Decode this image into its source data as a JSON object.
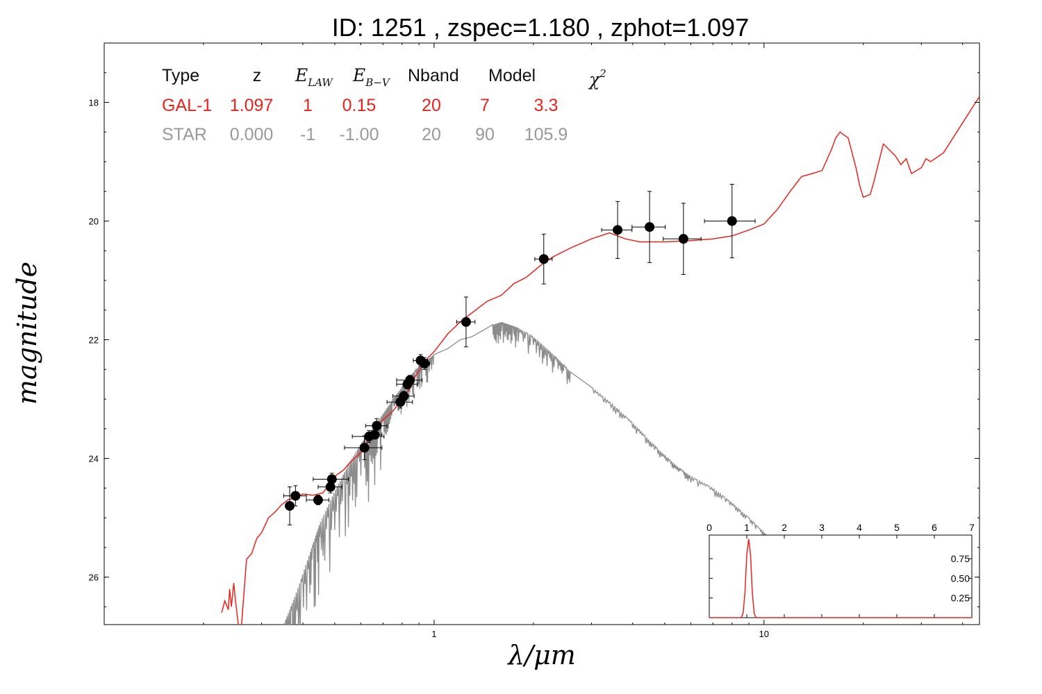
{
  "chart_data": {
    "type": "scatter",
    "title": "ID:  1251  , zspec=1.180 , zphot=1.097",
    "xlabel": "λ/μm",
    "ylabel": "magnitude",
    "xscale": "log",
    "xlim": [
      0.1,
      45
    ],
    "ylim": [
      26.8,
      17.0
    ],
    "x_ticks": [
      {
        "value": 1,
        "label": "1"
      },
      {
        "value": 10,
        "label": "10"
      }
    ],
    "y_ticks": [
      {
        "value": 18,
        "label": "18"
      },
      {
        "value": 20,
        "label": "20"
      },
      {
        "value": 22,
        "label": "22"
      },
      {
        "value": 24,
        "label": "24"
      },
      {
        "value": 26,
        "label": "26"
      }
    ],
    "legend_table": {
      "headers": [
        "Type",
        "z",
        "E_LAW",
        "E_B-V",
        "Nband",
        "Model",
        "χ2"
      ],
      "rows": [
        {
          "name": "GAL-1",
          "color": "#e8231c",
          "cells": [
            "GAL-1",
            "1.097",
            "1",
            "0.15",
            "20",
            "7",
            "3.3"
          ]
        },
        {
          "name": "STAR",
          "color": "#999999",
          "cells": [
            "STAR",
            "0.000",
            "-1",
            "-1.00",
            "20",
            "90",
            "105.9"
          ]
        }
      ]
    },
    "photometry": [
      {
        "x": 0.365,
        "y": 24.8,
        "xerr": 0.009,
        "yerr": 0.32
      },
      {
        "x": 0.38,
        "y": 24.63,
        "xerr": 0.03,
        "yerr": 0.17
      },
      {
        "x": 0.445,
        "y": 24.7,
        "xerr": 0.035,
        "yerr": 0.08
      },
      {
        "x": 0.485,
        "y": 24.48,
        "xerr": 0.04,
        "yerr": 0.1
      },
      {
        "x": 0.49,
        "y": 24.35,
        "xerr": 0.06,
        "yerr": 0.1
      },
      {
        "x": 0.615,
        "y": 23.82,
        "xerr": 0.08,
        "yerr": 0.2
      },
      {
        "x": 0.635,
        "y": 23.63,
        "xerr": 0.07,
        "yerr": 0.1
      },
      {
        "x": 0.66,
        "y": 23.6,
        "xerr": 0.035,
        "yerr": 0.06
      },
      {
        "x": 0.67,
        "y": 23.45,
        "xerr": 0.05,
        "yerr": 0.12
      },
      {
        "x": 0.79,
        "y": 23.05,
        "xerr": 0.07,
        "yerr": 0.1
      },
      {
        "x": 0.81,
        "y": 22.95,
        "xerr": 0.06,
        "yerr": 0.08
      },
      {
        "x": 0.83,
        "y": 22.75,
        "xerr": 0.06,
        "yerr": 0.08
      },
      {
        "x": 0.845,
        "y": 22.68,
        "xerr": 0.075,
        "yerr": 0.08
      },
      {
        "x": 0.91,
        "y": 22.35,
        "xerr": 0.045,
        "yerr": 0.1
      },
      {
        "x": 0.935,
        "y": 22.4,
        "xerr": 0.035,
        "yerr": 0.1
      },
      {
        "x": 1.25,
        "y": 21.7,
        "xerr": 0.08,
        "yerr": 0.42
      },
      {
        "x": 2.15,
        "y": 20.64,
        "xerr": 0.13,
        "yerr": 0.42
      },
      {
        "x": 3.6,
        "y": 20.15,
        "xerr": 0.38,
        "yerr": 0.48
      },
      {
        "x": 4.5,
        "y": 20.1,
        "xerr": 0.52,
        "yerr": 0.6
      },
      {
        "x": 5.7,
        "y": 20.3,
        "xerr": 0.75,
        "yerr": 0.6
      },
      {
        "x": 8.0,
        "y": 20.0,
        "xerr": 1.4,
        "yerr": 0.62
      }
    ],
    "series": [
      {
        "color": "#e8231c",
        "x": [
          0.227,
          0.232,
          0.238,
          0.24,
          0.243,
          0.247,
          0.25,
          0.255,
          0.26,
          0.265,
          0.27,
          0.28,
          0.29,
          0.3,
          0.315,
          0.33,
          0.345,
          0.36,
          0.37,
          0.38,
          0.4,
          0.43,
          0.46,
          0.48,
          0.5,
          0.53,
          0.56,
          0.6,
          0.63,
          0.66,
          0.7,
          0.75,
          0.8,
          0.85,
          0.88,
          0.92,
          0.96,
          1.0,
          1.05,
          1.1,
          1.2,
          1.3,
          1.45,
          1.6,
          1.75,
          1.9,
          2.1,
          2.3,
          2.6,
          3.0,
          3.4,
          3.8,
          4.2,
          4.6,
          5.0,
          6.0,
          7.0,
          8.0,
          9.0,
          10.0,
          11.0,
          12.0,
          13.0,
          14.0,
          15.0,
          16.0,
          16.5,
          17.0,
          18.0,
          19.0,
          19.5,
          20.0,
          21.0,
          21.5,
          23.0,
          25.0,
          26.0,
          27.0,
          28.0,
          30.0,
          31.0,
          32.0,
          35.0,
          45.0
        ],
        "y": [
          26.6,
          26.4,
          26.55,
          26.2,
          26.5,
          26.1,
          26.4,
          26.8,
          26.9,
          26.3,
          25.7,
          25.6,
          25.35,
          25.25,
          25.0,
          24.9,
          24.78,
          24.7,
          24.68,
          24.65,
          24.6,
          24.62,
          24.58,
          24.45,
          24.3,
          24.2,
          24.05,
          23.9,
          23.7,
          23.5,
          23.35,
          23.2,
          23.0,
          22.8,
          22.6,
          22.45,
          22.3,
          22.2,
          22.05,
          21.9,
          21.7,
          21.55,
          21.35,
          21.25,
          21.05,
          20.95,
          20.75,
          20.6,
          20.45,
          20.3,
          20.2,
          20.3,
          20.35,
          20.35,
          20.35,
          20.33,
          20.3,
          20.25,
          20.15,
          20.05,
          19.8,
          19.5,
          19.25,
          19.2,
          19.15,
          18.8,
          18.6,
          18.5,
          18.6,
          19.1,
          19.4,
          19.6,
          19.55,
          19.35,
          18.7,
          18.9,
          19.05,
          18.95,
          19.2,
          19.1,
          18.95,
          19.0,
          18.85,
          17.9
        ]
      },
      {
        "color": "#8c8c8c",
        "x": [
          0.35,
          0.38,
          0.42,
          0.45,
          0.5,
          0.55,
          0.6,
          0.65,
          0.7,
          0.75,
          0.8,
          0.85,
          0.9,
          0.95,
          1.0,
          1.1,
          1.2,
          1.3,
          1.4,
          1.5,
          1.6,
          1.7,
          1.8,
          2.0,
          2.2,
          2.4,
          2.6,
          3.0,
          3.5,
          4.0,
          4.5,
          5.0,
          5.5,
          6.0,
          7.0,
          8.0,
          9.0,
          10.0,
          10.4
        ],
        "y": [
          26.8,
          26.3,
          25.6,
          25.1,
          24.55,
          24.1,
          23.75,
          23.5,
          23.25,
          23.0,
          22.8,
          22.6,
          22.45,
          22.35,
          22.25,
          22.15,
          22.0,
          21.95,
          21.85,
          21.75,
          21.7,
          21.75,
          21.8,
          21.95,
          22.15,
          22.35,
          22.55,
          22.8,
          23.1,
          23.4,
          23.7,
          23.95,
          24.15,
          24.3,
          24.5,
          24.75,
          25.0,
          25.25,
          25.35
        ]
      }
    ],
    "inset": {
      "type": "line",
      "xlim": [
        0,
        7
      ],
      "ylim": [
        0,
        1.05
      ],
      "x_ticks": [
        "0",
        "1",
        "2",
        "3",
        "4",
        "5",
        "6",
        "7"
      ],
      "y_ticks": [
        "0.25",
        "0.50",
        "0.75"
      ],
      "color": "#e8231c",
      "x": [
        0,
        0.85,
        0.9,
        0.95,
        1.0,
        1.05,
        1.1,
        1.15,
        1.2,
        1.25,
        1.3,
        7.0
      ],
      "y": [
        0,
        0.0,
        0.05,
        0.3,
        0.8,
        1.0,
        0.8,
        0.3,
        0.05,
        0.0,
        0.0,
        0.0
      ]
    }
  }
}
